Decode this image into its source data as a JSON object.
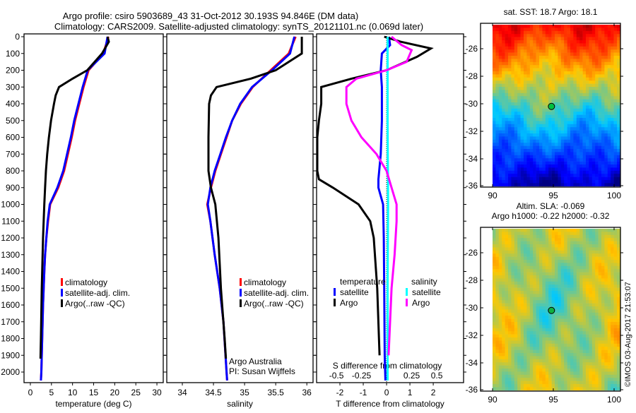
{
  "title_line1": "Argo profile: csiro 5903689_43 31-Oct-2012 30.193S 94.846E (DM data)",
  "title_line2": "Climatology: CARS2009. Satellite-adjusted climatology: synTS_20121101.nc (0.069d later)",
  "watermark": "©IMOS 03-Aug-2017 21:53:07",
  "colors": {
    "climatology": "#ff0000",
    "satellite": "#0000ff",
    "argo": "#000000",
    "sal_satellite": "#00ffff",
    "sal_argo": "#ff00ff"
  },
  "chart_data": [
    {
      "type": "line",
      "name": "temperature-profile",
      "xlabel": "temperature (deg C)",
      "xlim": [
        -1.5,
        31.5
      ],
      "ylim": [
        0,
        2080
      ],
      "xticks": [
        0,
        5,
        10,
        15,
        20,
        25,
        30
      ],
      "yticks": [
        0,
        100,
        200,
        300,
        400,
        500,
        600,
        700,
        800,
        900,
        1000,
        1100,
        1200,
        1300,
        1400,
        1500,
        1600,
        1700,
        1800,
        1900,
        2000
      ],
      "legend": [
        "climatology",
        "satellite-adj. clim.",
        "Argo(..raw -QC)"
      ],
      "series": [
        {
          "name": "climatology",
          "color": "#ff0000",
          "depth": [
            0,
            100,
            200,
            300,
            400,
            500,
            600,
            700,
            800,
            900,
            1000,
            1100,
            1200,
            1300,
            1400,
            1600,
            1800,
            2000,
            2050
          ],
          "values": [
            18.5,
            17.3,
            13.8,
            12.6,
            11.6,
            10.6,
            9.8,
            8.9,
            8.0,
            6.6,
            4.7,
            4.2,
            3.8,
            3.5,
            3.3,
            3.0,
            2.8,
            2.6,
            2.5
          ]
        },
        {
          "name": "satellite-adj. clim.",
          "color": "#0000ff",
          "depth": [
            0,
            100,
            200,
            300,
            400,
            500,
            600,
            700,
            800,
            900,
            1000,
            1100,
            1200,
            1300,
            1400,
            1600,
            1800,
            2000,
            2050
          ],
          "values": [
            18.3,
            17.6,
            13.6,
            12.4,
            11.4,
            10.4,
            9.6,
            8.7,
            7.8,
            6.4,
            4.6,
            4.1,
            3.8,
            3.5,
            3.3,
            3.0,
            2.8,
            2.6,
            2.5
          ]
        },
        {
          "name": "Argo(..raw -QC)",
          "color": "#000000",
          "depth": [
            0,
            30,
            100,
            200,
            250,
            300,
            350,
            400,
            500,
            600,
            700,
            800,
            900,
            1000,
            1200,
            1500,
            1800,
            1920
          ],
          "values": [
            18.3,
            18.6,
            17.0,
            13.5,
            10.0,
            6.8,
            6.0,
            5.6,
            4.9,
            4.4,
            4.0,
            3.7,
            3.5,
            3.3,
            3.0,
            2.7,
            2.5,
            2.4
          ]
        }
      ]
    },
    {
      "type": "line",
      "name": "salinity-profile",
      "xlabel": "salinity",
      "xlim": [
        33.75,
        36.1
      ],
      "ylim": [
        0,
        2080
      ],
      "xticks": [
        34,
        34.5,
        35,
        35.5,
        36
      ],
      "legend": [
        "climatology",
        "satellite-adj. clim.",
        "Argo(..raw -QC)"
      ],
      "annotation": [
        "Argo Australia",
        "PI: Susan Wijffels"
      ],
      "series": [
        {
          "name": "climatology",
          "color": "#ff0000",
          "depth": [
            0,
            100,
            200,
            300,
            400,
            500,
            600,
            700,
            800,
            900,
            1000,
            1100,
            1300,
            1500,
            1700,
            2000,
            2050
          ],
          "values": [
            35.82,
            35.71,
            35.42,
            35.13,
            34.94,
            34.8,
            34.71,
            34.62,
            34.53,
            34.46,
            34.4,
            34.45,
            34.52,
            34.6,
            34.66,
            34.71,
            34.72
          ]
        },
        {
          "name": "satellite-adj. clim.",
          "color": "#0000ff",
          "depth": [
            0,
            100,
            200,
            300,
            400,
            500,
            600,
            700,
            800,
            900,
            1000,
            1100,
            1300,
            1500,
            1700,
            2000,
            2050
          ],
          "values": [
            35.8,
            35.73,
            35.44,
            35.12,
            34.93,
            34.8,
            34.7,
            34.61,
            34.52,
            34.45,
            34.41,
            34.45,
            34.52,
            34.6,
            34.66,
            34.71,
            34.72
          ]
        },
        {
          "name": "Argo(..raw -QC)",
          "color": "#000000",
          "depth": [
            0,
            100,
            200,
            250,
            300,
            350,
            400,
            600,
            800,
            900,
            1000,
            1200,
            1500,
            1800,
            1920
          ],
          "values": [
            35.92,
            35.92,
            35.5,
            35.1,
            34.55,
            34.46,
            34.43,
            34.42,
            34.42,
            34.46,
            34.53,
            34.58,
            34.62,
            34.68,
            34.7
          ]
        }
      ]
    },
    {
      "type": "line",
      "name": "difference-profile",
      "xlabel": "T difference from climatology",
      "xlabel2": "S difference from climatology",
      "xlim": [
        -3,
        3.3
      ],
      "ylim": [
        0,
        2080
      ],
      "xticks": [
        -2,
        -1,
        0,
        1,
        2
      ],
      "xticks2": [
        -0.5,
        -0.25,
        0,
        0.25,
        0.5
      ],
      "xticks2_labels": [
        "-0.5",
        "-0.25",
        "0",
        "0.25",
        "0.5"
      ],
      "legend_temperature": {
        "title": "temperature",
        "items": [
          "satellite",
          "Argo"
        ]
      },
      "legend_salinity": {
        "title": "salinity",
        "items": [
          "satellite",
          "Argo"
        ]
      },
      "series": [
        {
          "name": "T satellite",
          "units": "T",
          "color": "#0000ff",
          "depth": [
            0,
            50,
            100,
            200,
            300,
            500,
            700,
            850,
            900,
            1000,
            1200,
            1500,
            1900,
            2050
          ],
          "values": [
            0.1,
            0.15,
            -0.2,
            -0.25,
            -0.2,
            -0.2,
            -0.25,
            -0.35,
            -0.35,
            -0.15,
            -0.12,
            -0.1,
            -0.08,
            -0.05
          ]
        },
        {
          "name": "T Argo",
          "units": "T",
          "color": "#000000",
          "depth": [
            0,
            30,
            70,
            120,
            200,
            250,
            300,
            400,
            500,
            600,
            800,
            850,
            900,
            1000,
            1100,
            1200,
            1500,
            1900
          ],
          "values": [
            -0.1,
            0.6,
            1.9,
            1.3,
            0.0,
            -1.5,
            -2.8,
            -2.8,
            -2.9,
            -3.0,
            -3.0,
            -2.9,
            -2.3,
            -1.2,
            -0.7,
            -0.55,
            -0.4,
            -0.3
          ]
        },
        {
          "name": "S satellite",
          "units": "S",
          "color": "#00ffff",
          "depth": [
            0,
            100,
            500,
            1000,
            1500,
            2050
          ],
          "values": [
            0.01,
            0.01,
            0.01,
            0.015,
            0.01,
            0.01
          ]
        },
        {
          "name": "S Argo",
          "units": "S",
          "color": "#ff00ff",
          "depth": [
            0,
            50,
            80,
            150,
            200,
            250,
            300,
            400,
            500,
            600,
            700,
            800,
            900,
            1000,
            1100,
            1300,
            1500,
            1900
          ],
          "values": [
            0.05,
            0.15,
            0.25,
            0.2,
            0.0,
            -0.3,
            -0.4,
            -0.4,
            -0.35,
            -0.25,
            -0.1,
            0.0,
            0.05,
            0.1,
            0.1,
            0.08,
            0.05,
            0.02
          ]
        }
      ]
    },
    {
      "type": "heatmap",
      "name": "sst-map",
      "title": "sat. SST: 18.7 Argo: 18.1",
      "xticks": [
        90,
        95,
        100
      ],
      "yticks": [
        -26,
        -28,
        -30,
        -32,
        -34,
        -36
      ],
      "xlim": [
        89.5,
        100.5
      ],
      "ylim": [
        -36.1,
        -24.8
      ],
      "marker": {
        "lon": 94.846,
        "lat": -30.193
      }
    },
    {
      "type": "heatmap",
      "name": "sla-map",
      "title_line1": "Altim. SLA: -0.069",
      "title_line2": "Argo h1000: -0.22 h2000: -0.32",
      "xticks": [
        90,
        95,
        100
      ],
      "yticks": [
        -26,
        -28,
        -30,
        -32,
        -34,
        -36
      ],
      "xlim": [
        89.5,
        100.5
      ],
      "ylim": [
        -36.1,
        -24.8
      ],
      "marker": {
        "lon": 94.846,
        "lat": -30.193
      }
    }
  ]
}
